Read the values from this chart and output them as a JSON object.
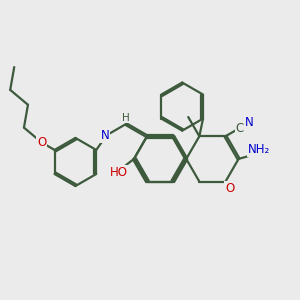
{
  "bg_color": "#ebebeb",
  "bond_color": "#3d5a3d",
  "atom_colors": {
    "N": "#0000cc",
    "O": "#cc0000",
    "C": "#3d5a3d",
    "H": "#3d5a3d"
  },
  "line_width": 1.6,
  "font_size": 8.5
}
